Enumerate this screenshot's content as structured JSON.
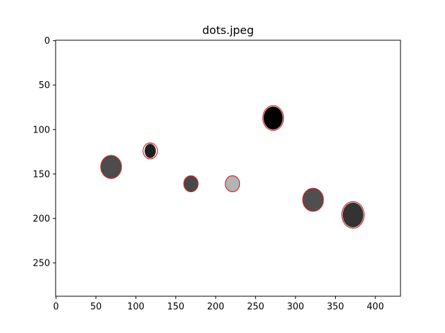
{
  "chart_data": {
    "type": "image_with_annotations",
    "title": "dots.jpeg",
    "xlabel": "",
    "ylabel": "",
    "xlim": [
      -0.5,
      431.5
    ],
    "ylim": [
      287.5,
      -0.5
    ],
    "y_inverted": true,
    "x_ticks": [
      0,
      50,
      100,
      150,
      200,
      250,
      300,
      350,
      400
    ],
    "y_ticks": [
      0,
      50,
      100,
      150,
      200,
      250
    ],
    "grid": false,
    "image_background": "#ffffff",
    "annotation_color": "#d62728",
    "dots": [
      {
        "x": 69,
        "y": 142,
        "rx": 13,
        "ry": 13,
        "fill": "#4c4c4c"
      },
      {
        "x": 118,
        "y": 124,
        "rx": 7,
        "ry": 8,
        "fill": "#1e1e1e"
      },
      {
        "x": 169,
        "y": 161,
        "rx": 9,
        "ry": 9,
        "fill": "#484848"
      },
      {
        "x": 221,
        "y": 161,
        "rx": 9,
        "ry": 9,
        "fill": "#b4b4b4"
      },
      {
        "x": 272,
        "y": 87,
        "rx": 12,
        "ry": 13,
        "fill": "#000000"
      },
      {
        "x": 322,
        "y": 179,
        "rx": 13,
        "ry": 13,
        "fill": "#4f4f4f"
      },
      {
        "x": 372,
        "y": 196,
        "rx": 13,
        "ry": 14,
        "fill": "#333333"
      }
    ],
    "circles": [
      {
        "x": 69,
        "y": 142,
        "rx": 13,
        "ry": 13
      },
      {
        "x": 118,
        "y": 124,
        "rx": 9,
        "ry": 9
      },
      {
        "x": 169,
        "y": 161,
        "rx": 9,
        "ry": 9
      },
      {
        "x": 221,
        "y": 161,
        "rx": 9,
        "ry": 9
      },
      {
        "x": 272,
        "y": 87,
        "rx": 13,
        "ry": 14
      },
      {
        "x": 322,
        "y": 179,
        "rx": 13,
        "ry": 13
      },
      {
        "x": 372,
        "y": 196,
        "rx": 14,
        "ry": 15
      }
    ]
  }
}
